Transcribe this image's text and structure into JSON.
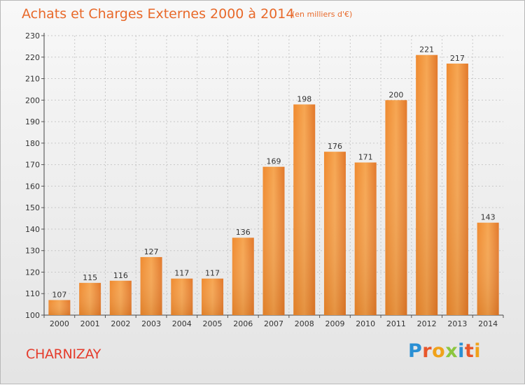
{
  "header": {
    "title": "Achats et Charges Externes 2000 à 2014",
    "unit": "(en milliers d'€)"
  },
  "footer": {
    "commune": "CHARNIZAY",
    "logo_letters": [
      "P",
      "r",
      "o",
      "x",
      "i",
      "t",
      "i"
    ],
    "logo_colors": [
      "#2a8fd4",
      "#e8562a",
      "#f0a21a",
      "#8cc63f",
      "#2a8fd4",
      "#e8562a",
      "#f0a21a"
    ]
  },
  "chart_data": {
    "type": "bar",
    "categories": [
      "2000",
      "2001",
      "2002",
      "2003",
      "2004",
      "2005",
      "2006",
      "2007",
      "2008",
      "2009",
      "2010",
      "2011",
      "2012",
      "2013",
      "2014"
    ],
    "values": [
      107,
      115,
      116,
      127,
      117,
      117,
      136,
      169,
      198,
      176,
      171,
      200,
      221,
      217,
      143
    ],
    "ylim": [
      100,
      230
    ],
    "yticks": [
      100,
      110,
      120,
      130,
      140,
      150,
      160,
      170,
      180,
      190,
      200,
      210,
      220,
      230
    ],
    "grid": true,
    "bar_color": "#f0913a",
    "bar_color_dark": "#d5701d"
  }
}
